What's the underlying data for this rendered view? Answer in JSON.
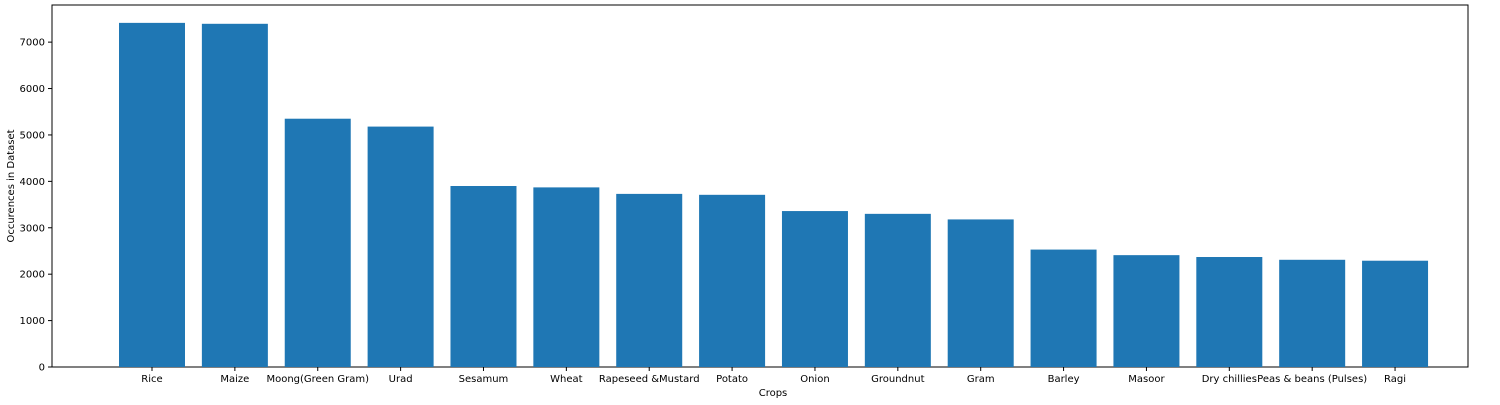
{
  "chart_data": {
    "type": "bar",
    "categories": [
      "Rice",
      "Maize",
      "Moong(Green Gram)",
      "Urad",
      "Sesamum",
      "Wheat",
      "Rapeseed &Mustard",
      "Potato",
      "Onion",
      "Groundnut",
      "Gram",
      "Barley",
      "Masoor",
      "Dry chillies",
      "Peas & beans (Pulses)",
      "Ragi"
    ],
    "values": [
      7415,
      7395,
      5350,
      5180,
      3900,
      3870,
      3730,
      3710,
      3360,
      3300,
      3180,
      2530,
      2410,
      2370,
      2310,
      2290
    ],
    "xlabel": "Crops",
    "ylabel": "Occurences in Dataset",
    "ylim": [
      0,
      7800
    ],
    "yticks": [
      0,
      1000,
      2000,
      3000,
      4000,
      5000,
      6000,
      7000
    ],
    "bar_color": "#1f77b4",
    "grid": false,
    "legend": "none"
  }
}
